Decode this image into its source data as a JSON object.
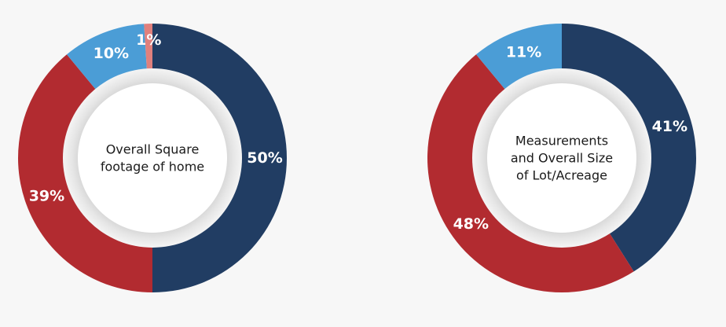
{
  "colors": {
    "navy": "#213d63",
    "red": "#b22b30",
    "blue": "#4b9dd6",
    "pink": "#e0807d"
  },
  "chart_data": [
    {
      "type": "pie",
      "donut": true,
      "center_label": [
        "Overall Square",
        "footage of home"
      ],
      "slices": [
        {
          "label": "50%",
          "value": 50,
          "color": "#213d63"
        },
        {
          "label": "39%",
          "value": 39,
          "color": "#b22b30"
        },
        {
          "label": "10%",
          "value": 10,
          "color": "#4b9dd6"
        },
        {
          "label": "1%",
          "value": 1,
          "color": "#e0807d"
        }
      ]
    },
    {
      "type": "pie",
      "donut": true,
      "center_label": [
        "Measurements",
        "and Overall Size",
        "of Lot/Acreage"
      ],
      "slices": [
        {
          "label": "41%",
          "value": 41,
          "color": "#213d63"
        },
        {
          "label": "48%",
          "value": 48,
          "color": "#b22b30"
        },
        {
          "label": "11%",
          "value": 11,
          "color": "#4b9dd6"
        }
      ]
    }
  ]
}
